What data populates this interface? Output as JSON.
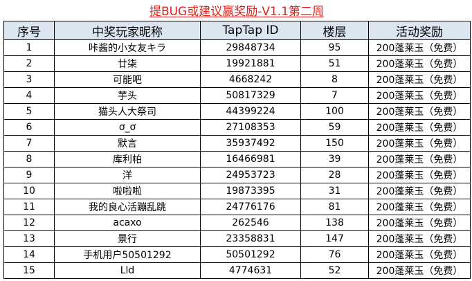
{
  "title": "提BUG或建议赢奖励-V1.1第二周",
  "headers": [
    "序号",
    "中奖玩家昵称",
    "TapTap ID",
    "楼层",
    "活动奖励"
  ],
  "rows": [
    [
      "1",
      "咔酱的小女友キラ",
      "29848734",
      "95",
      "200蓬莱玉（免费）"
    ],
    [
      "2",
      "廿柒",
      "19921881",
      "51",
      "200蓬莱玉（免费）"
    ],
    [
      "3",
      "可能吧",
      "4668242",
      "8",
      "200蓬莱玉（免费）"
    ],
    [
      "4",
      "芋头",
      "50817329",
      "7",
      "200蓬莱玉（免费）"
    ],
    [
      "5",
      "猫头人大祭司",
      "44399224",
      "100",
      "200蓬莱玉（免费）"
    ],
    [
      "6",
      "ơ_ơ",
      "27108353",
      "59",
      "200蓬莱玉（免费）"
    ],
    [
      "7",
      "默言",
      "35937492",
      "150",
      "200蓬莱玉（免费）"
    ],
    [
      "8",
      "库利帕",
      "16466981",
      "39",
      "200蓬莱玉（免费）"
    ],
    [
      "9",
      "洋",
      "24953723",
      "28",
      "200蓬莱玉（免费）"
    ],
    [
      "10",
      "啦啦啦",
      "19873395",
      "31",
      "200蓬莱玉（免费）"
    ],
    [
      "11",
      "我的良心活蹦乱跳",
      "24776176",
      "81",
      "200蓬莱玉（免费）"
    ],
    [
      "12",
      "acaxo",
      "262546",
      "138",
      "200蓬莱玉（免费）"
    ],
    [
      "13",
      "景行",
      "23358831",
      "147",
      "200蓬莱玉（免费）"
    ],
    [
      "14",
      "手机用户50501292",
      "50501292",
      "76",
      "200蓬莱玉（免费）"
    ],
    [
      "15",
      "Lld",
      "4774631",
      "52",
      "200蓬莱玉（免费）"
    ]
  ]
}
